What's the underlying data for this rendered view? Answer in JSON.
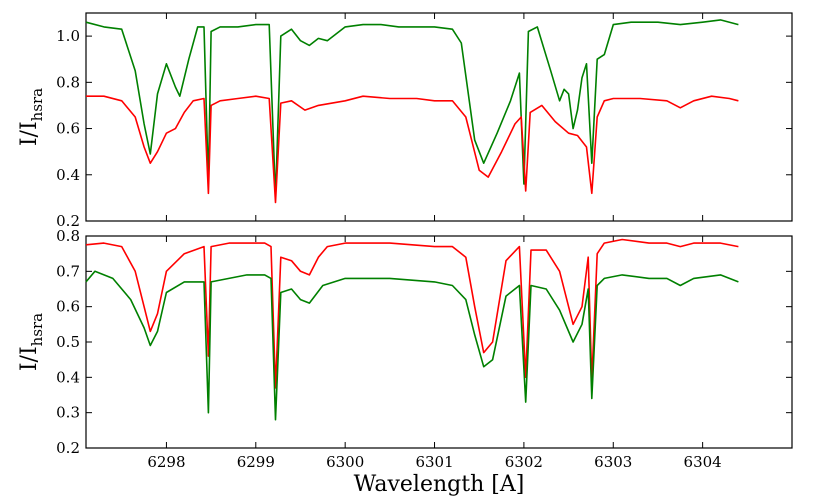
{
  "chart_data": [
    {
      "type": "line",
      "title": "",
      "xlabel": "",
      "ylabel": "I/I_hsra",
      "ylabel_main": "I/I",
      "ylabel_sub": "hsra",
      "xlim": [
        6297.1,
        6305.0
      ],
      "ylim": [
        0.2,
        1.1
      ],
      "yticks": [
        0.2,
        0.4,
        0.6,
        0.8,
        1.0
      ],
      "ytick_labels": [
        "0.2",
        "0.4",
        "0.6",
        "0.8",
        "1.0"
      ],
      "grid": false,
      "series": [
        {
          "color": "#008000",
          "x": [
            6297.1,
            6297.3,
            6297.5,
            6297.65,
            6297.75,
            6297.82,
            6297.9,
            6298.0,
            6298.1,
            6298.15,
            6298.25,
            6298.35,
            6298.42,
            6298.47,
            6298.5,
            6298.6,
            6298.8,
            6299.0,
            6299.15,
            6299.22,
            6299.28,
            6299.4,
            6299.5,
            6299.6,
            6299.7,
            6299.8,
            6300.0,
            6300.2,
            6300.4,
            6300.6,
            6300.8,
            6301.0,
            6301.2,
            6301.3,
            6301.45,
            6301.55,
            6301.7,
            6301.85,
            6301.95,
            6302.0,
            6302.05,
            6302.15,
            6302.3,
            6302.4,
            6302.45,
            6302.5,
            6302.55,
            6302.6,
            6302.65,
            6302.7,
            6302.76,
            6302.82,
            6302.9,
            6303.0,
            6303.2,
            6303.5,
            6303.75,
            6304.0,
            6304.2,
            6304.4
          ],
          "y": [
            1.06,
            1.04,
            1.03,
            0.85,
            0.62,
            0.49,
            0.75,
            0.88,
            0.78,
            0.74,
            0.9,
            1.04,
            1.04,
            0.36,
            1.02,
            1.04,
            1.04,
            1.05,
            1.05,
            0.3,
            1.0,
            1.03,
            0.98,
            0.96,
            0.99,
            0.98,
            1.04,
            1.05,
            1.05,
            1.04,
            1.04,
            1.04,
            1.03,
            0.97,
            0.55,
            0.45,
            0.58,
            0.72,
            0.84,
            0.36,
            1.02,
            1.04,
            0.85,
            0.72,
            0.77,
            0.75,
            0.6,
            0.68,
            0.82,
            0.88,
            0.45,
            0.9,
            0.92,
            1.05,
            1.06,
            1.06,
            1.05,
            1.06,
            1.07,
            1.05
          ]
        },
        {
          "color": "#ff0000",
          "x": [
            6297.1,
            6297.3,
            6297.5,
            6297.65,
            6297.75,
            6297.82,
            6297.9,
            6298.0,
            6298.1,
            6298.2,
            6298.3,
            6298.42,
            6298.47,
            6298.5,
            6298.6,
            6298.8,
            6299.0,
            6299.15,
            6299.22,
            6299.28,
            6299.4,
            6299.55,
            6299.7,
            6300.0,
            6300.2,
            6300.5,
            6300.8,
            6301.0,
            6301.2,
            6301.35,
            6301.5,
            6301.6,
            6301.75,
            6301.9,
            6301.97,
            6302.02,
            6302.07,
            6302.2,
            6302.35,
            6302.5,
            6302.6,
            6302.7,
            6302.76,
            6302.82,
            6302.9,
            6303.0,
            6303.3,
            6303.6,
            6303.75,
            6303.9,
            6304.1,
            6304.3,
            6304.4
          ],
          "y": [
            0.74,
            0.74,
            0.72,
            0.65,
            0.52,
            0.45,
            0.5,
            0.58,
            0.6,
            0.67,
            0.72,
            0.73,
            0.32,
            0.7,
            0.72,
            0.73,
            0.74,
            0.73,
            0.28,
            0.71,
            0.72,
            0.68,
            0.7,
            0.72,
            0.74,
            0.73,
            0.73,
            0.72,
            0.72,
            0.65,
            0.42,
            0.39,
            0.5,
            0.62,
            0.65,
            0.33,
            0.67,
            0.7,
            0.63,
            0.58,
            0.57,
            0.52,
            0.32,
            0.65,
            0.72,
            0.73,
            0.73,
            0.72,
            0.69,
            0.72,
            0.74,
            0.73,
            0.72
          ]
        }
      ]
    },
    {
      "type": "line",
      "title": "",
      "xlabel": "Wavelength [A]",
      "ylabel": "I/I_hsra",
      "ylabel_main": "I/I",
      "ylabel_sub": "hsra",
      "xlim": [
        6297.1,
        6305.0
      ],
      "ylim": [
        0.2,
        0.8
      ],
      "yticks": [
        0.2,
        0.3,
        0.4,
        0.5,
        0.6,
        0.7,
        0.8
      ],
      "ytick_labels": [
        "0.2",
        "0.3",
        "0.4",
        "0.5",
        "0.6",
        "0.7",
        "0.8"
      ],
      "xticks": [
        6298,
        6299,
        6300,
        6301,
        6302,
        6303,
        6304
      ],
      "xtick_labels": [
        "6298",
        "6299",
        "6300",
        "6301",
        "6302",
        "6303",
        "6304"
      ],
      "grid": false,
      "series": [
        {
          "color": "#ff0000",
          "x": [
            6297.1,
            6297.3,
            6297.5,
            6297.65,
            6297.75,
            6297.82,
            6297.9,
            6298.0,
            6298.2,
            6298.42,
            6298.47,
            6298.5,
            6298.7,
            6298.9,
            6299.1,
            6299.17,
            6299.22,
            6299.28,
            6299.4,
            6299.5,
            6299.6,
            6299.7,
            6299.8,
            6300.0,
            6300.5,
            6301.0,
            6301.2,
            6301.35,
            6301.45,
            6301.55,
            6301.65,
            6301.8,
            6301.95,
            6302.02,
            6302.08,
            6302.25,
            6302.4,
            6302.55,
            6302.65,
            6302.72,
            6302.76,
            6302.82,
            6302.9,
            6303.1,
            6303.4,
            6303.6,
            6303.75,
            6303.9,
            6304.2,
            6304.4
          ],
          "y": [
            0.775,
            0.78,
            0.77,
            0.7,
            0.6,
            0.53,
            0.58,
            0.7,
            0.75,
            0.77,
            0.46,
            0.77,
            0.78,
            0.78,
            0.78,
            0.77,
            0.37,
            0.74,
            0.73,
            0.7,
            0.69,
            0.74,
            0.77,
            0.78,
            0.78,
            0.77,
            0.77,
            0.74,
            0.6,
            0.47,
            0.5,
            0.73,
            0.77,
            0.4,
            0.76,
            0.76,
            0.7,
            0.55,
            0.6,
            0.74,
            0.39,
            0.75,
            0.78,
            0.79,
            0.78,
            0.78,
            0.77,
            0.78,
            0.78,
            0.77
          ]
        },
        {
          "color": "#008000",
          "x": [
            6297.1,
            6297.2,
            6297.4,
            6297.6,
            6297.75,
            6297.82,
            6297.9,
            6298.0,
            6298.2,
            6298.42,
            6298.47,
            6298.5,
            6298.7,
            6298.9,
            6299.1,
            6299.17,
            6299.22,
            6299.28,
            6299.4,
            6299.5,
            6299.6,
            6299.75,
            6300.0,
            6300.5,
            6301.0,
            6301.2,
            6301.35,
            6301.45,
            6301.55,
            6301.65,
            6301.8,
            6301.95,
            6302.02,
            6302.08,
            6302.25,
            6302.4,
            6302.55,
            6302.65,
            6302.72,
            6302.76,
            6302.82,
            6302.9,
            6303.1,
            6303.4,
            6303.6,
            6303.75,
            6303.9,
            6304.2,
            6304.4
          ],
          "y": [
            0.67,
            0.7,
            0.68,
            0.62,
            0.54,
            0.49,
            0.53,
            0.64,
            0.67,
            0.67,
            0.3,
            0.67,
            0.68,
            0.69,
            0.69,
            0.68,
            0.28,
            0.64,
            0.65,
            0.62,
            0.61,
            0.66,
            0.68,
            0.68,
            0.67,
            0.66,
            0.62,
            0.52,
            0.43,
            0.45,
            0.63,
            0.66,
            0.33,
            0.66,
            0.65,
            0.59,
            0.5,
            0.55,
            0.65,
            0.34,
            0.66,
            0.68,
            0.69,
            0.68,
            0.68,
            0.66,
            0.68,
            0.69,
            0.67
          ]
        }
      ]
    }
  ]
}
